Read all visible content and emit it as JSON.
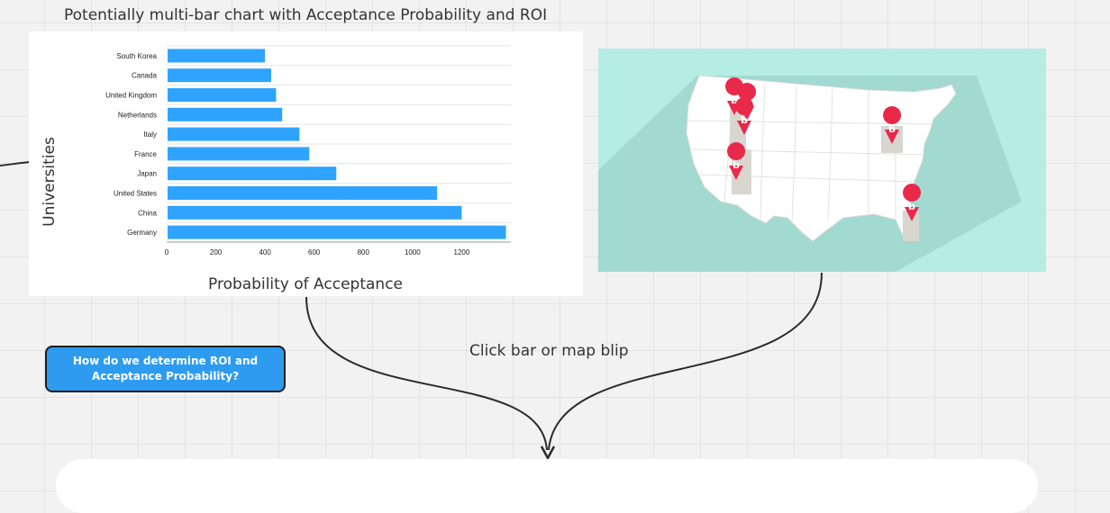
{
  "board": {
    "chart_caption": "Potentially multi-bar chart with Acceptance Probability and ROI",
    "question_box": "How do we determine ROI and Acceptance Probability?",
    "click_caption": "Click bar or map blip"
  },
  "chart_data": {
    "type": "bar",
    "orientation": "horizontal",
    "categories": [
      "South Korea",
      "Canada",
      "United Kingdom",
      "Netherlands",
      "Italy",
      "France",
      "Japan",
      "United States",
      "China",
      "Germany"
    ],
    "values": [
      400,
      425,
      445,
      470,
      540,
      580,
      690,
      1100,
      1200,
      1380
    ],
    "xlabel": "Probability of Acceptance",
    "ylabel": "Universities",
    "xlim": [
      0,
      1400
    ],
    "xticks": [
      0,
      200,
      400,
      600,
      800,
      1000,
      1200
    ],
    "bar_color": "#2ea3ff",
    "grid": true
  },
  "map": {
    "background": "#b5ede4",
    "pin_color": "#e8294a",
    "pin_glyph": "b",
    "highlight_color": "#d9d6d0"
  }
}
